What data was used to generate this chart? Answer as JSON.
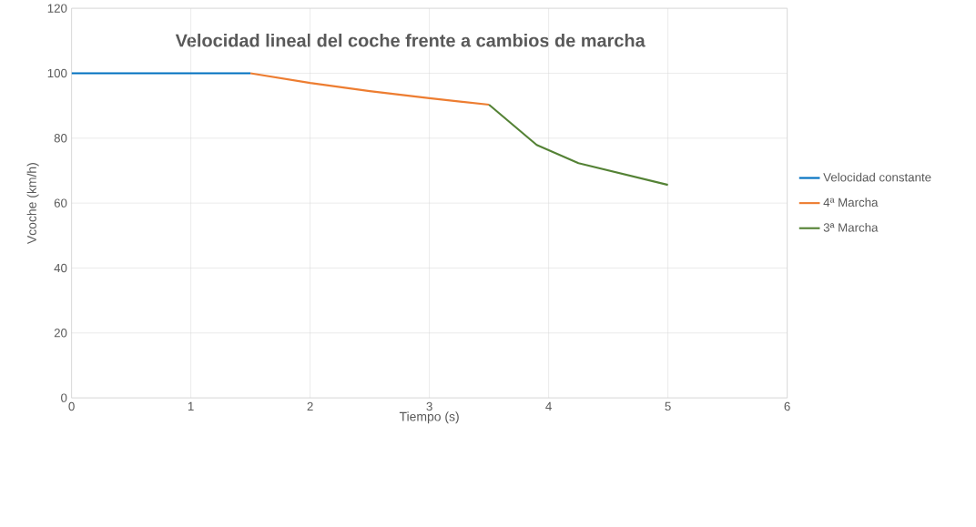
{
  "chart_data": {
    "type": "line",
    "title": "Velocidad lineal del coche frente a cambios de marcha",
    "xlabel": "Tiempo (s)",
    "ylabel": "Vcoche (km/h)",
    "xlim": [
      0,
      6
    ],
    "ylim": [
      0,
      120
    ],
    "xticks": [
      0,
      1,
      2,
      3,
      4,
      5,
      6
    ],
    "yticks": [
      0,
      20,
      40,
      60,
      80,
      100,
      120
    ],
    "grid": true,
    "legend": "right",
    "series": [
      {
        "name": "Velocidad constante",
        "color": "#0070c0",
        "x": [
          0,
          1.5
        ],
        "values": [
          100,
          100
        ]
      },
      {
        "name": "4ª Marcha",
        "color": "#ed7d31",
        "x": [
          1.5,
          2,
          2.5,
          3,
          3.5
        ],
        "values": [
          100,
          97,
          94.5,
          92.3,
          90.3
        ]
      },
      {
        "name": "3ª Marcha",
        "color": "#548235",
        "x": [
          3.5,
          3.9,
          4.25,
          5
        ],
        "values": [
          90.3,
          77.9,
          72.3,
          65.6
        ]
      }
    ]
  }
}
